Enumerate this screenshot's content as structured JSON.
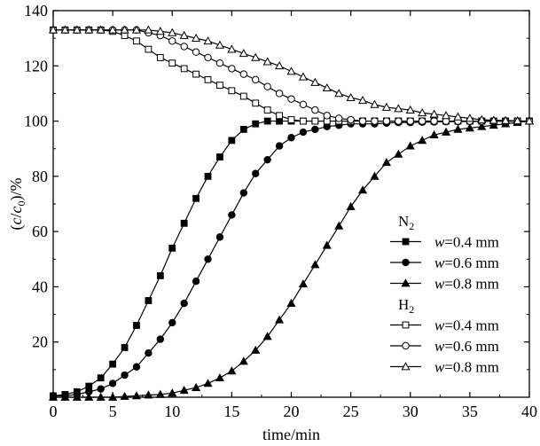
{
  "chart_data": {
    "type": "line",
    "title": "",
    "xlabel": "time/min",
    "ylabel_parts": [
      "(",
      "c",
      "/",
      "c",
      "0",
      ")/%"
    ],
    "xlim": [
      0,
      40
    ],
    "ylim": [
      0,
      140
    ],
    "xticks": [
      0,
      5,
      10,
      15,
      20,
      25,
      30,
      35,
      40
    ],
    "yticks": [
      20,
      40,
      60,
      80,
      100,
      120,
      140
    ],
    "legend_groups": [
      {
        "name": "N",
        "subscript": "2",
        "series_indices": [
          0,
          1,
          2
        ]
      },
      {
        "name": "H",
        "subscript": "2",
        "series_indices": [
          3,
          4,
          5
        ]
      }
    ],
    "legend_var": "w",
    "legend_unit": "mm",
    "series": [
      {
        "name": "N2 w=0.4 mm",
        "legend_value": "=0.4",
        "marker": "filled-square",
        "x": [
          0,
          1,
          2,
          3,
          4,
          5,
          6,
          7,
          8,
          9,
          10,
          11,
          12,
          13,
          14,
          15,
          16,
          17,
          18,
          19,
          20,
          21,
          22,
          23,
          24,
          25,
          26,
          27,
          28,
          29,
          30,
          31,
          32,
          33,
          34,
          35,
          36,
          37,
          38,
          39,
          40
        ],
        "y": [
          0.5,
          1,
          2,
          4,
          7,
          12,
          18,
          26,
          35,
          44,
          54,
          63,
          72,
          80,
          87,
          93,
          97,
          99,
          100,
          100,
          100,
          100,
          100,
          100,
          100,
          100,
          100,
          100,
          100,
          100,
          100,
          100,
          100,
          100,
          100,
          100,
          100,
          100,
          100,
          100,
          100
        ]
      },
      {
        "name": "N2 w=0.6 mm",
        "legend_value": "=0.6",
        "marker": "filled-circle",
        "x": [
          0,
          1,
          2,
          3,
          4,
          5,
          6,
          7,
          8,
          9,
          10,
          11,
          12,
          13,
          14,
          15,
          16,
          17,
          18,
          19,
          20,
          21,
          22,
          23,
          24,
          25,
          26,
          27,
          28,
          29,
          30,
          31,
          32,
          33,
          34,
          35,
          36,
          37,
          38,
          39,
          40
        ],
        "y": [
          0.5,
          0.5,
          1,
          2,
          3,
          5,
          8,
          11,
          16,
          21,
          27,
          34,
          42,
          50,
          58,
          66,
          74,
          81,
          86,
          91,
          94,
          96,
          97,
          98,
          98.5,
          99,
          99,
          99,
          99.3,
          99.5,
          99.5,
          99.6,
          99.7,
          99.8,
          99.8,
          99.9,
          99.9,
          100,
          100,
          100,
          100
        ]
      },
      {
        "name": "N2 w=0.8 mm",
        "legend_value": "=0.8",
        "marker": "filled-triangle",
        "x": [
          0,
          1,
          2,
          3,
          4,
          5,
          6,
          7,
          8,
          9,
          10,
          11,
          12,
          13,
          14,
          15,
          16,
          17,
          18,
          19,
          20,
          21,
          22,
          23,
          24,
          25,
          26,
          27,
          28,
          29,
          30,
          31,
          32,
          33,
          34,
          35,
          36,
          37,
          38,
          39,
          40
        ],
        "y": [
          0,
          0,
          0,
          0,
          0,
          0,
          0.3,
          0.5,
          0.8,
          1,
          1.5,
          2.5,
          3.5,
          5,
          7,
          9.5,
          13,
          17,
          22,
          28,
          34,
          41,
          48,
          55,
          62,
          69,
          75,
          80,
          85,
          88,
          91,
          93,
          95,
          96,
          97,
          97.5,
          98,
          98.5,
          99,
          99.5,
          100
        ]
      },
      {
        "name": "H2 w=0.4 mm",
        "legend_value": "=0.4",
        "marker": "open-square",
        "x": [
          0,
          1,
          2,
          3,
          4,
          5,
          6,
          7,
          8,
          9,
          10,
          11,
          12,
          13,
          14,
          15,
          16,
          17,
          18,
          19,
          20,
          21,
          22,
          23,
          24,
          25,
          26,
          27,
          28,
          29,
          30,
          31,
          32,
          33,
          34,
          35,
          36,
          37,
          38,
          39,
          40
        ],
        "y": [
          133,
          133,
          133,
          133,
          133,
          132.5,
          131,
          129,
          126,
          123,
          121,
          119,
          117,
          115,
          113,
          111,
          109,
          106.5,
          104,
          102,
          100.5,
          100,
          100,
          100,
          100,
          100,
          100,
          100,
          100,
          100,
          100,
          100,
          100,
          100,
          100,
          100,
          100,
          100,
          100,
          100,
          100
        ]
      },
      {
        "name": "H2 w=0.6 mm",
        "legend_value": "=0.6",
        "marker": "open-circle",
        "x": [
          0,
          1,
          2,
          3,
          4,
          5,
          6,
          7,
          8,
          9,
          10,
          11,
          12,
          13,
          14,
          15,
          16,
          17,
          18,
          19,
          20,
          21,
          22,
          23,
          24,
          25,
          26,
          27,
          28,
          29,
          30,
          31,
          32,
          33,
          34,
          35,
          36,
          37,
          38,
          39,
          40
        ],
        "y": [
          133,
          133,
          133,
          133,
          133,
          133,
          133,
          133,
          132,
          131,
          129,
          127,
          125,
          123,
          121,
          119,
          117,
          115,
          112.5,
          110,
          108,
          106,
          104,
          102,
          101,
          100.5,
          100,
          100,
          100,
          100,
          100,
          100,
          100,
          100,
          100,
          100,
          100,
          100,
          100,
          100,
          100
        ]
      },
      {
        "name": "H2 w=0.8 mm",
        "legend_value": "=0.8",
        "marker": "open-triangle",
        "x": [
          0,
          1,
          2,
          3,
          4,
          5,
          6,
          7,
          8,
          9,
          10,
          11,
          12,
          13,
          14,
          15,
          16,
          17,
          18,
          19,
          20,
          21,
          22,
          23,
          24,
          25,
          26,
          27,
          28,
          29,
          30,
          31,
          32,
          33,
          34,
          35,
          36,
          37,
          38,
          39,
          40
        ],
        "y": [
          133,
          133,
          133,
          133,
          133,
          133,
          133,
          133,
          133,
          132.5,
          132,
          131,
          130,
          129,
          127.5,
          126,
          124.5,
          123,
          121.5,
          120,
          118,
          116,
          114,
          112,
          110,
          108.5,
          107.5,
          106,
          105,
          104.5,
          104,
          103,
          102.5,
          102,
          101.5,
          101,
          100.5,
          100.3,
          100.2,
          100.1,
          100
        ]
      }
    ]
  }
}
